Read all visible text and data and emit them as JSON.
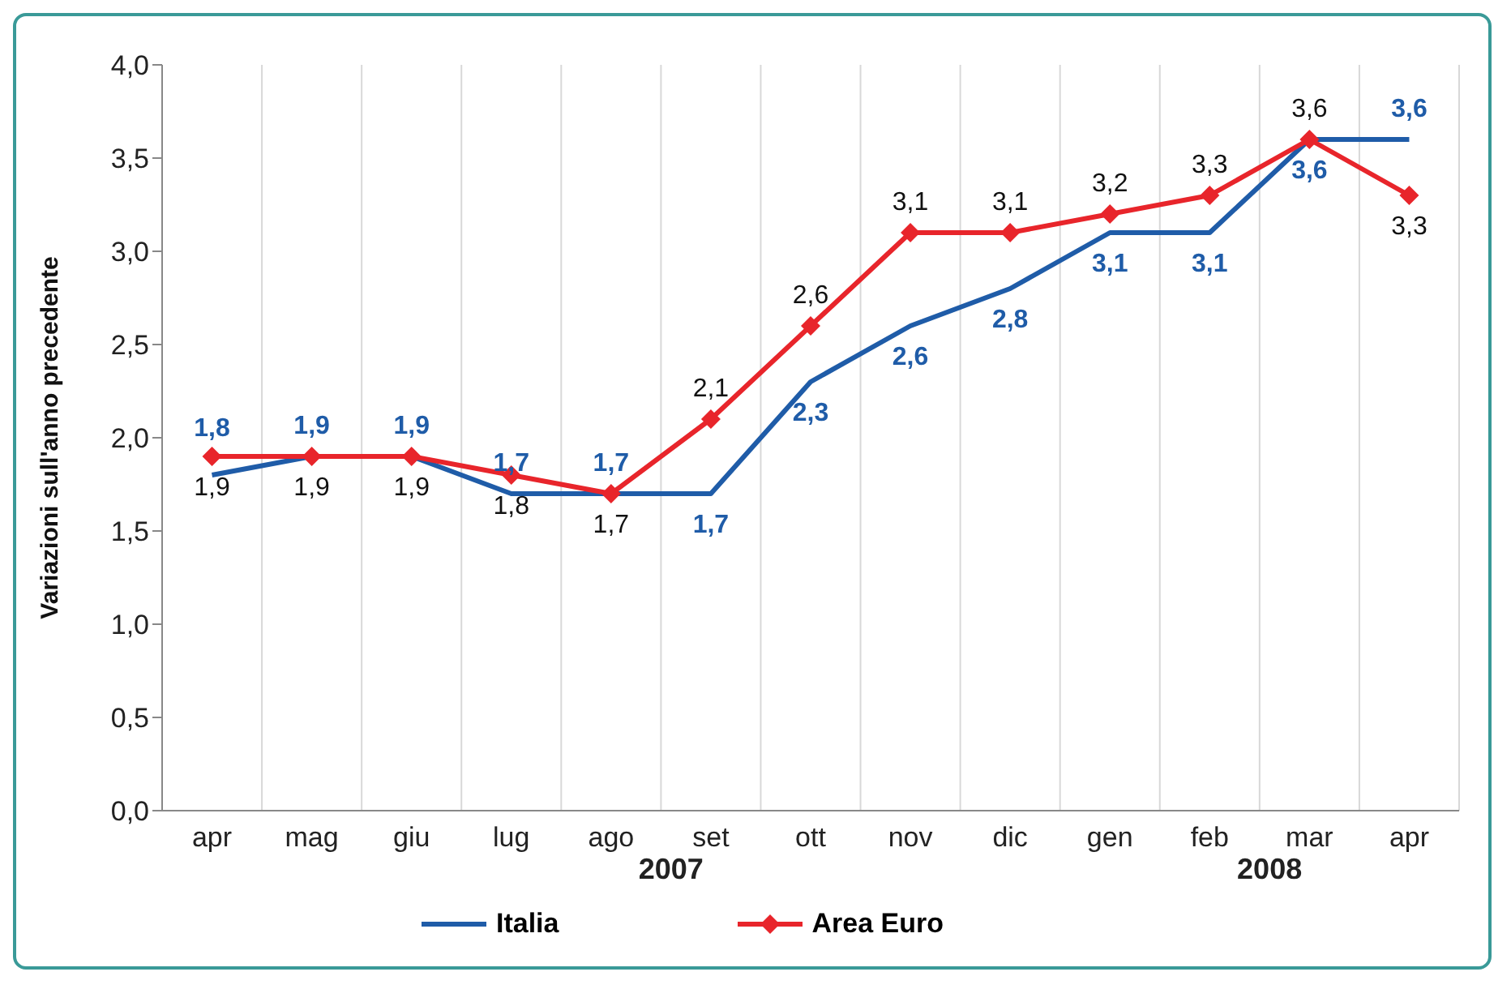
{
  "chart_data": {
    "type": "line",
    "ylabel": "Variazioni sull'anno precedente",
    "categories": [
      "apr",
      "mag",
      "giu",
      "lug",
      "ago",
      "set",
      "ott",
      "nov",
      "dic",
      "gen",
      "feb",
      "mar",
      "apr"
    ],
    "series": [
      {
        "name": "Italia",
        "color": "#1f5ca8",
        "marker": "none",
        "values": [
          1.8,
          1.9,
          1.9,
          1.7,
          1.7,
          1.7,
          2.3,
          2.6,
          2.8,
          3.1,
          3.1,
          3.6,
          3.6
        ],
        "value_labels": [
          "1,8",
          "1,9",
          "1,9",
          "1,7",
          "1,7",
          "1,7",
          "2,3",
          "2,6",
          "2,8",
          "3,1",
          "3,1",
          "3,6",
          "3,6"
        ]
      },
      {
        "name": "Area Euro",
        "color": "#e8252b",
        "marker": "diamond",
        "values": [
          1.9,
          1.9,
          1.9,
          1.8,
          1.7,
          2.1,
          2.6,
          3.1,
          3.1,
          3.2,
          3.3,
          3.6,
          3.3
        ],
        "value_labels": [
          "1,9",
          "1,9",
          "1,9",
          "1,8",
          "1,7",
          "2,1",
          "2,6",
          "3,1",
          "3,1",
          "3,2",
          "3,3",
          "3,6",
          "3,3"
        ]
      }
    ],
    "ylim": [
      0,
      4
    ],
    "yticks": [
      {
        "value": 0,
        "label": "0,0"
      },
      {
        "value": 0.5,
        "label": "0,5"
      },
      {
        "value": 1,
        "label": "1,0"
      },
      {
        "value": 1.5,
        "label": "1,5"
      },
      {
        "value": 2,
        "label": "2,0"
      },
      {
        "value": 2.5,
        "label": "2,5"
      },
      {
        "value": 3,
        "label": "3,0"
      },
      {
        "value": 3.5,
        "label": "3,5"
      },
      {
        "value": 4,
        "label": "4,0"
      }
    ],
    "grid": "x",
    "legend": "bottom",
    "line_style": "solid",
    "annotations": [
      "2007",
      "2008"
    ]
  }
}
